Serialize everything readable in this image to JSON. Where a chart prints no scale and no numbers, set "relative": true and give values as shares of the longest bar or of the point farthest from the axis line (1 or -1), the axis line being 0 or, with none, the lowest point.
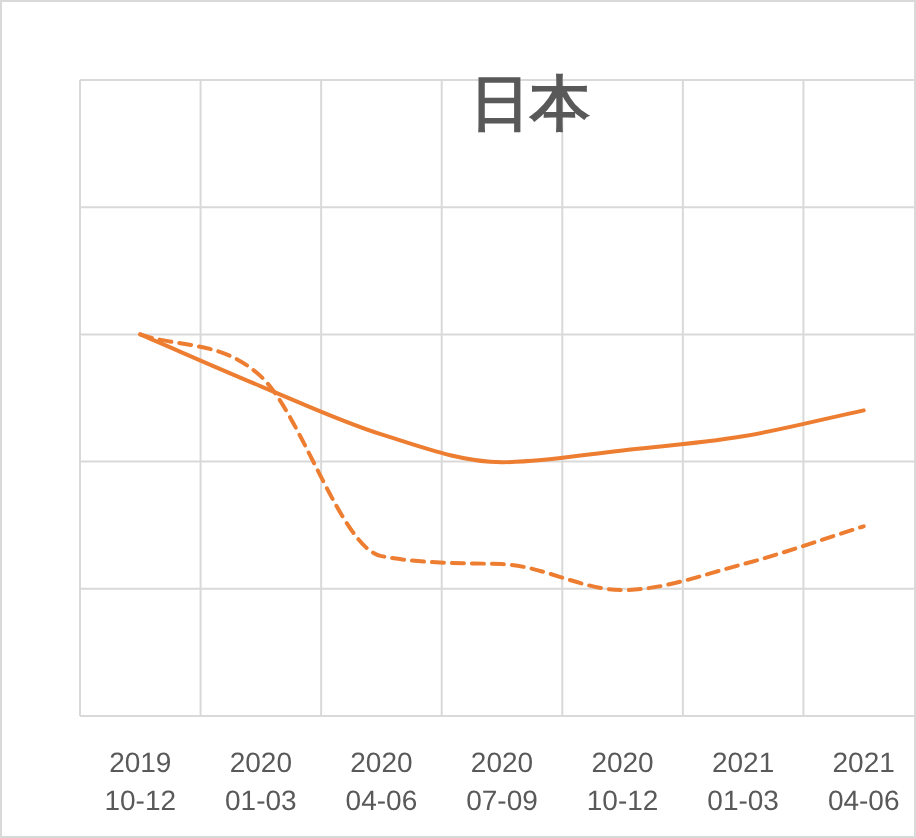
{
  "chart_data": {
    "type": "line",
    "title": "日本",
    "relative": true,
    "grid": true,
    "marker": "none",
    "categories": [
      "2019\n10-12",
      "2020\n01-03",
      "2020\n04-06",
      "2020\n07-09",
      "2020\n10-12",
      "2021\n01-03",
      "2021\n04-06"
    ],
    "series": [
      {
        "color": "#ed7d31",
        "line_style": "solid",
        "values": [
          1,
          0.864,
          0.738,
          0.665,
          0.696,
          0.733,
          0.801
        ]
      },
      {
        "color": "#ed7d31",
        "line_style": "dashed",
        "values": [
          1,
          0.89,
          0.419,
          0.398,
          0.33,
          0.398,
          0.497
        ]
      }
    ]
  }
}
